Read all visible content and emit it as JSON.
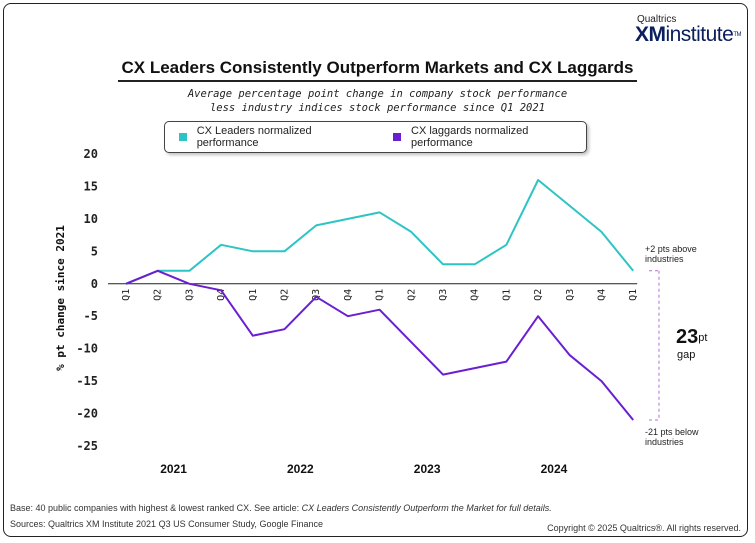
{
  "brand": {
    "small": "Qualtrics",
    "xm": "XM",
    "institute": "institute",
    "tm": "TM"
  },
  "chart_data": {
    "type": "line",
    "title": "CX Leaders Consistently Outperform Markets and CX Laggards",
    "subtitle_line1": "Average percentage point change in company stock performance",
    "subtitle_line2": "less industry indices stock performance since Q1 2021",
    "ylabel": "% pt change since 2021",
    "ylim": [
      -25,
      20
    ],
    "yticks": [
      20,
      15,
      10,
      5,
      0,
      -5,
      -10,
      -15,
      -20,
      -25
    ],
    "categories": [
      "Q1",
      "Q2",
      "Q3",
      "Q4",
      "Q1",
      "Q2",
      "Q3",
      "Q4",
      "Q1",
      "Q2",
      "Q3",
      "Q4",
      "Q1",
      "Q2",
      "Q3",
      "Q4",
      "Q1"
    ],
    "years": [
      "2021",
      "2022",
      "2023",
      "2024"
    ],
    "legend_position": "top",
    "grid": false,
    "series": [
      {
        "name": "CX Leaders normalized performance",
        "color": "#2ec4c4",
        "values": [
          0,
          2,
          2,
          6,
          5,
          5,
          9,
          10,
          11,
          8,
          3,
          3,
          6,
          16,
          12,
          8,
          2
        ]
      },
      {
        "name": "CX laggards normalized performance",
        "color": "#6a1fd1",
        "values": [
          0,
          2,
          0,
          -1,
          -8,
          -7,
          -2,
          -5,
          -4,
          -9,
          -14,
          -13,
          -12,
          -5,
          -11,
          -15,
          -21
        ]
      }
    ],
    "annotations": {
      "top_line1": "+2 pts above",
      "top_line2": "industries",
      "gap_value": "23",
      "gap_unit": "pt",
      "gap_label": "gap",
      "bottom_line1": "-21 pts below",
      "bottom_line2": "industries"
    }
  },
  "footer": {
    "base_prefix": "Base: 40 public companies with highest & lowest ranked CX. See article: ",
    "base_article": "CX Leaders Consistently Outperform the Market for full details.",
    "sources": "Sources: Qualtrics XM Institute 2021 Q3 US Consumer Study, Google Finance",
    "copyright": "Copyright © 2025 Qualtrics®. All rights reserved."
  }
}
